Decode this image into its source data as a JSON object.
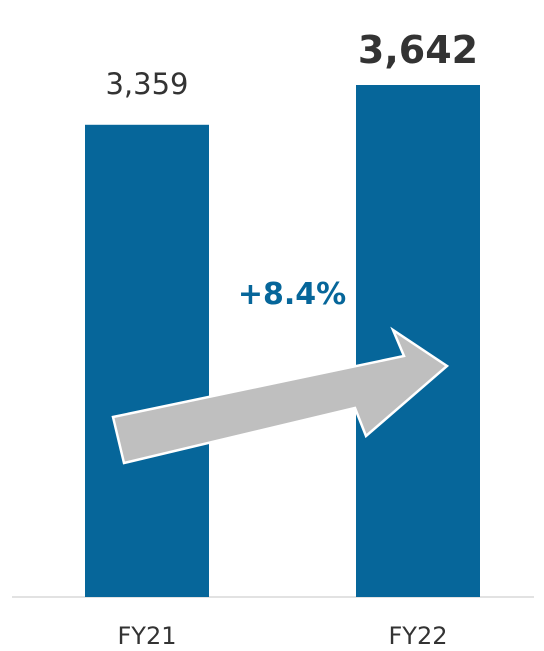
{
  "chart_data": {
    "type": "bar",
    "categories": [
      "FY21",
      "FY22"
    ],
    "values": [
      3359,
      3642
    ],
    "value_labels": [
      "3,359",
      "3,642"
    ],
    "highlight_index": 1,
    "title": "",
    "xlabel": "",
    "ylabel": "",
    "grid": false,
    "legend": "none",
    "annotation": {
      "text": "+8.4%",
      "kind": "growth-arrow"
    }
  },
  "colors": {
    "bar": "#06669a",
    "arrow_fill": "#bfbfbf",
    "arrow_stroke": "#ffffff",
    "annotation_text": "#06669a",
    "value_label": "#333333",
    "axis_line": "#d9d9d9",
    "category_label": "#333333"
  }
}
